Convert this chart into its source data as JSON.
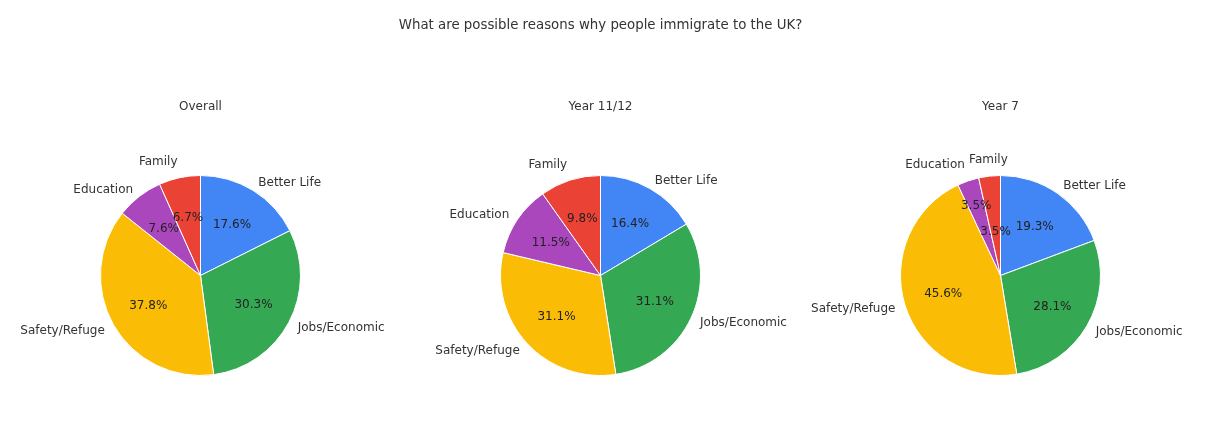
{
  "chart_data": [
    {
      "type": "pie",
      "title": "Overall",
      "annotations": [
        "What are possible reasons why people immigrate to the UK?"
      ],
      "categories": [
        "Better Life",
        "Jobs/Economic",
        "Safety/Refuge",
        "Education",
        "Family"
      ],
      "values": [
        17.6,
        30.3,
        37.8,
        7.6,
        6.7
      ],
      "value_labels": [
        "17.6%",
        "30.3%",
        "37.8%",
        "7.6%",
        "6.7%"
      ],
      "colors": [
        "#4285f4",
        "#34a853",
        "#fbbc05",
        "#ab47bc",
        "#ea4335"
      ]
    },
    {
      "type": "pie",
      "title": "Year 11/12",
      "categories": [
        "Better Life",
        "Jobs/Economic",
        "Safety/Refuge",
        "Education",
        "Family"
      ],
      "values": [
        16.4,
        31.1,
        31.1,
        11.5,
        9.8
      ],
      "value_labels": [
        "16.4%",
        "31.1%",
        "31.1%",
        "11.5%",
        "9.8%"
      ],
      "colors": [
        "#4285f4",
        "#34a853",
        "#fbbc05",
        "#ab47bc",
        "#ea4335"
      ]
    },
    {
      "type": "pie",
      "title": "Year 7",
      "categories": [
        "Better Life",
        "Jobs/Economic",
        "Safety/Refuge",
        "Education",
        "Family"
      ],
      "values": [
        19.3,
        28.1,
        45.6,
        3.5,
        3.5
      ],
      "value_labels": [
        "19.3%",
        "28.1%",
        "45.6%",
        "3.5%",
        "3.5%"
      ],
      "colors": [
        "#4285f4",
        "#34a853",
        "#fbbc05",
        "#ab47bc",
        "#ea4335"
      ]
    }
  ]
}
